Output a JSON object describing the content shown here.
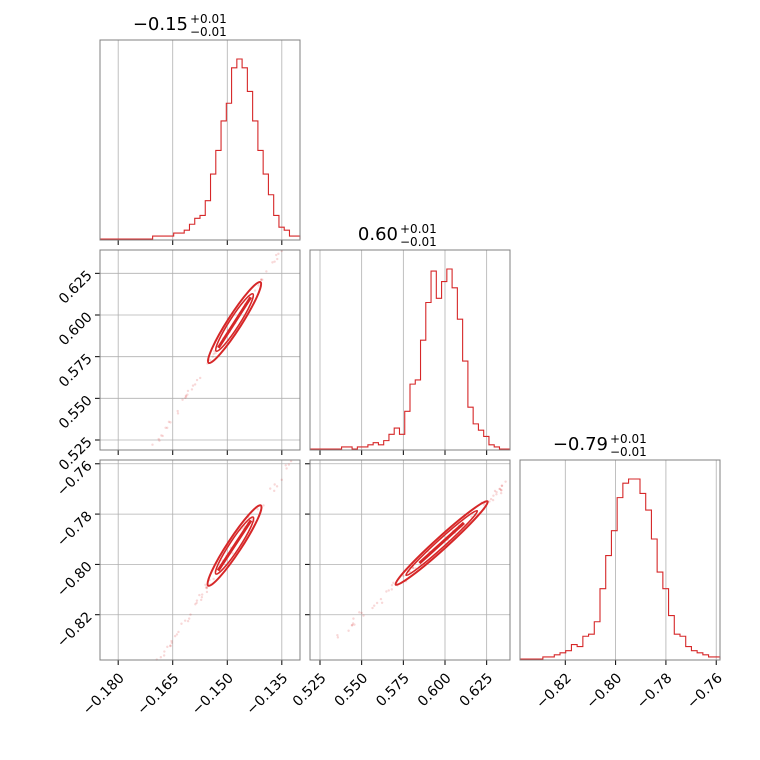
{
  "chart_data": {
    "type": "corner",
    "color": "#d62728",
    "grid": true,
    "parameters": [
      {
        "title_main": "−0.15",
        "title_sup": "+0.01",
        "title_sub": "−0.01",
        "range": [
          -0.185,
          -0.13
        ],
        "ticks": [
          -0.18,
          -0.165,
          -0.15,
          -0.135
        ],
        "tick_labels": [
          "−0.180",
          "−0.165",
          "−0.150",
          "−0.135"
        ]
      },
      {
        "title_main": "0.60",
        "title_sup": "+0.01",
        "title_sub": "−0.01",
        "range": [
          0.519,
          0.639
        ],
        "ticks": [
          0.525,
          0.55,
          0.575,
          0.6,
          0.625
        ],
        "tick_labels": [
          "0.525",
          "0.550",
          "0.575",
          "0.600",
          "0.625"
        ]
      },
      {
        "title_main": "−0.79",
        "title_sup": "+0.01",
        "title_sub": "−0.01",
        "range": [
          -0.838,
          -0.7585
        ],
        "ticks": [
          -0.82,
          -0.8,
          -0.78,
          -0.76
        ],
        "tick_labels": [
          "−0.82",
          "−0.80",
          "−0.78",
          "−0.76"
        ]
      }
    ],
    "histograms": [
      {
        "param": 0,
        "bin_edges": [
          -0.185,
          -0.13
        ],
        "counts": [
          0,
          0,
          0,
          0,
          0,
          0,
          0,
          0,
          0,
          0,
          1,
          1,
          1,
          1,
          2,
          2,
          3,
          5,
          7,
          8,
          13,
          22,
          30,
          40,
          46,
          58,
          61,
          58,
          50,
          40,
          30,
          22,
          15,
          8,
          4,
          3,
          1,
          1
        ]
      },
      {
        "param": 1,
        "bin_edges": [
          0.519,
          0.639
        ],
        "counts": [
          0,
          0,
          0,
          0,
          0,
          0,
          1,
          1,
          0,
          1,
          1,
          2,
          3,
          2,
          4,
          7,
          10,
          7,
          18,
          31,
          33,
          52,
          70,
          85,
          72,
          80,
          86,
          77,
          62,
          42,
          20,
          12,
          9,
          6,
          2,
          1,
          0,
          0
        ]
      },
      {
        "param": 2,
        "bin_edges": [
          -0.838,
          -0.7585
        ],
        "counts": [
          0,
          0,
          0,
          0,
          1,
          1,
          2,
          3,
          4,
          7,
          6,
          11,
          12,
          18,
          34,
          50,
          62,
          78,
          85,
          87,
          87,
          80,
          72,
          58,
          42,
          34,
          21,
          12,
          11,
          6,
          4,
          3,
          2,
          1,
          1
        ]
      }
    ],
    "pairs": [
      {
        "x": 0,
        "y": 1,
        "slope": 3.4,
        "x_range": [
          -0.172,
          -0.132
        ],
        "center": [
          -0.148,
          0.5955
        ]
      },
      {
        "x": 0,
        "y": 2,
        "slope": 2.2,
        "x_range": [
          -0.172,
          -0.132
        ],
        "center": [
          -0.148,
          -0.7925
        ]
      },
      {
        "x": 1,
        "y": 2,
        "slope": 0.6,
        "x_range": [
          0.535,
          0.638
        ],
        "center": [
          0.598,
          -0.7915
        ]
      }
    ]
  }
}
